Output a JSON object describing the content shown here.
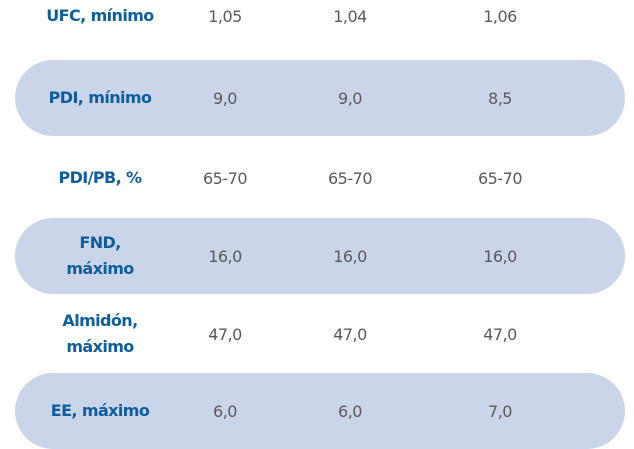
{
  "table": {
    "rows": [
      {
        "label": [
          "UFC, mínimo"
        ],
        "cells": [
          "1,05",
          "1,04",
          "1,06"
        ]
      },
      {
        "label": [
          "PDI, mínimo"
        ],
        "cells": [
          "9,0",
          "9,0",
          "8,5"
        ]
      },
      {
        "label": [
          "PDI/PB, %"
        ],
        "cells": [
          "65-70",
          "65-70",
          "65-70"
        ]
      },
      {
        "label": [
          "FND,",
          "máximo"
        ],
        "cells": [
          "16,0",
          "16,0",
          "16,0"
        ]
      },
      {
        "label": [
          "Almidón,",
          "máximo"
        ],
        "cells": [
          "47,0",
          "47,0",
          "47,0"
        ]
      },
      {
        "label": [
          "EE, máximo"
        ],
        "cells": [
          "6,0",
          "6,0",
          "7,0"
        ]
      }
    ]
  }
}
